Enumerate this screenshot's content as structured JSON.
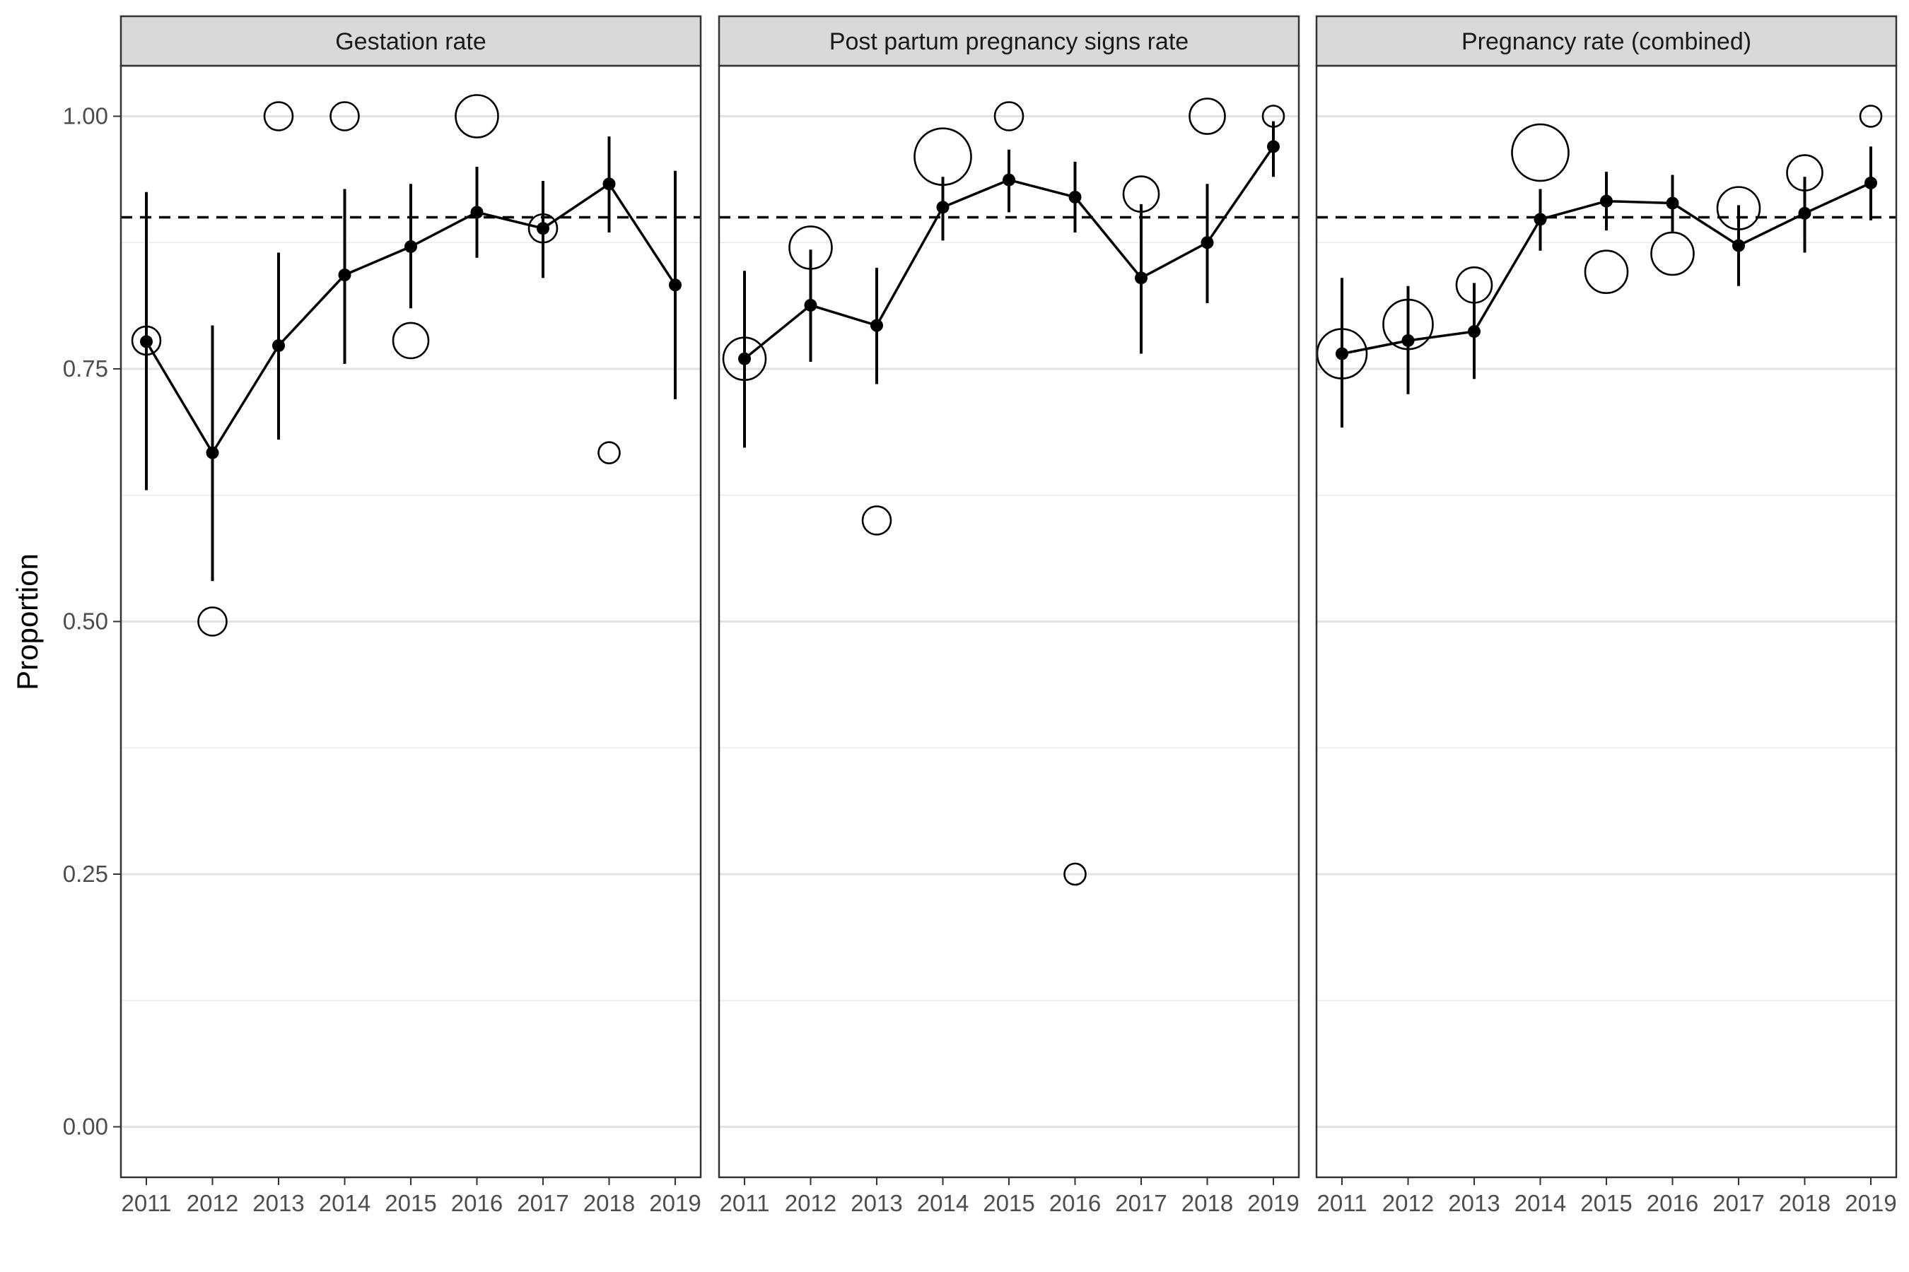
{
  "chart_data": {
    "type": "scatter",
    "ylabel": "Proportion",
    "xlabel": "",
    "ylim": [
      -0.05,
      1.05
    ],
    "yticks": [
      0.0,
      0.25,
      0.5,
      0.75,
      1.0
    ],
    "ytick_labels": [
      "0.00",
      "0.25",
      "0.50",
      "0.75",
      "1.00"
    ],
    "reference_line": 0.9,
    "grid": true,
    "x": [
      "2011",
      "2012",
      "2013",
      "2014",
      "2015",
      "2016",
      "2017",
      "2018",
      "2019"
    ],
    "panels": [
      {
        "title": "Gestation rate",
        "estimate": [
          0.777,
          0.667,
          0.773,
          0.843,
          0.871,
          0.905,
          0.889,
          0.933,
          0.833
        ],
        "lower": [
          0.63,
          0.54,
          0.68,
          0.755,
          0.81,
          0.86,
          0.84,
          0.885,
          0.72
        ],
        "upper": [
          0.925,
          0.793,
          0.865,
          0.928,
          0.933,
          0.95,
          0.936,
          0.98,
          0.946
        ],
        "observed": [
          0.778,
          0.5,
          1.0,
          1.0,
          0.778,
          1.0,
          0.889,
          0.667,
          null
        ],
        "observed_size": [
          2,
          2,
          2,
          2,
          3,
          4,
          2,
          1,
          0
        ]
      },
      {
        "title": "Post partum pregnancy signs rate",
        "estimate": [
          0.76,
          0.813,
          0.793,
          0.91,
          0.937,
          0.92,
          0.84,
          0.875,
          0.97
        ],
        "lower": [
          0.672,
          0.757,
          0.735,
          0.877,
          0.905,
          0.885,
          0.765,
          0.815,
          0.94
        ],
        "upper": [
          0.847,
          0.868,
          0.85,
          0.94,
          0.967,
          0.955,
          0.913,
          0.933,
          0.995
        ],
        "observed": [
          0.76,
          0.87,
          0.6,
          0.96,
          1.0,
          0.25,
          0.923,
          1.0,
          1.0
        ],
        "observed_size": [
          4,
          4,
          2,
          6,
          2,
          1,
          3,
          3,
          1
        ]
      },
      {
        "title": "Pregnancy rate (combined)",
        "estimate": [
          0.765,
          0.778,
          0.787,
          0.898,
          0.916,
          0.914,
          0.872,
          0.904,
          0.934
        ],
        "lower": [
          0.692,
          0.725,
          0.74,
          0.867,
          0.887,
          0.886,
          0.832,
          0.865,
          0.897
        ],
        "upper": [
          0.84,
          0.832,
          0.835,
          0.928,
          0.945,
          0.942,
          0.912,
          0.94,
          0.97
        ],
        "observed": [
          0.765,
          0.794,
          0.833,
          0.964,
          0.846,
          0.864,
          0.909,
          0.944,
          1.0
        ],
        "observed_size": [
          5,
          5,
          3,
          6,
          4,
          4,
          4,
          3,
          1
        ]
      }
    ]
  }
}
